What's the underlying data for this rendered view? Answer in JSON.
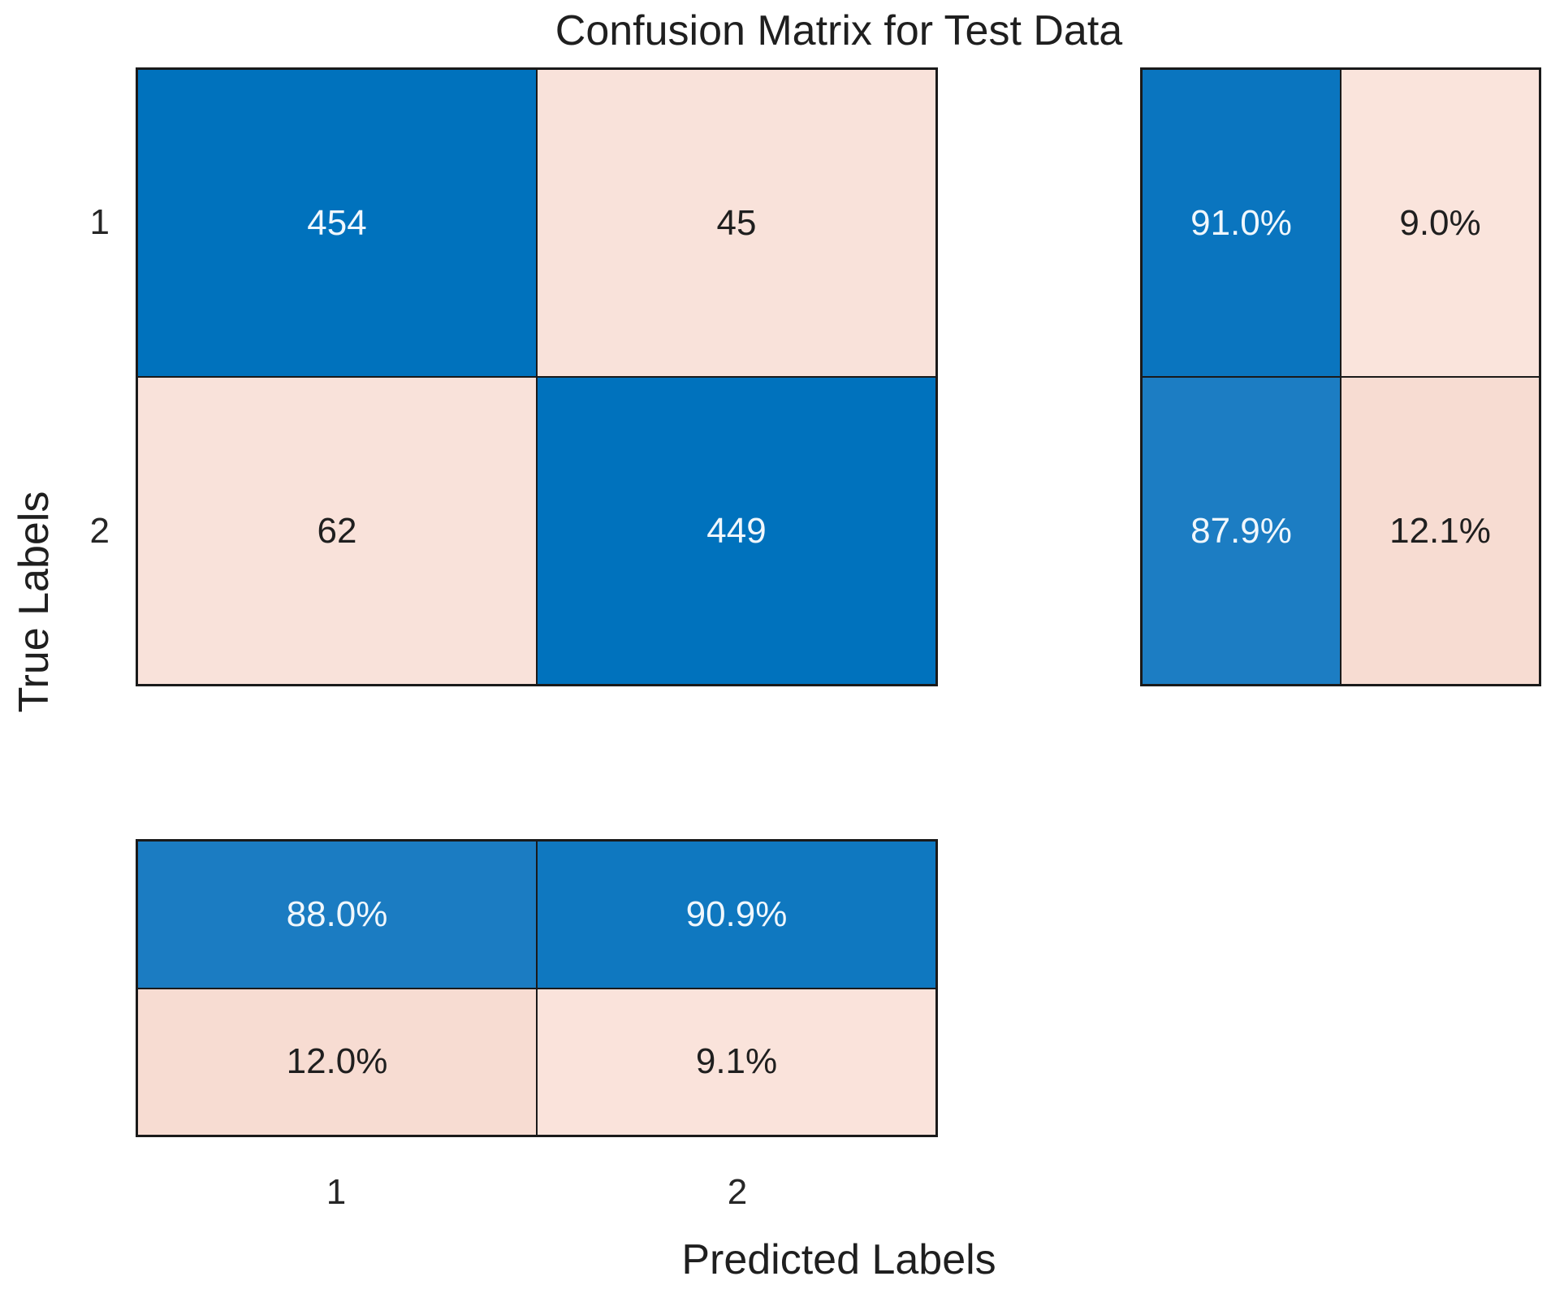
{
  "title": "Confusion Matrix for Test Data",
  "x_axis": {
    "label": "Predicted Labels",
    "ticks": [
      "1",
      "2"
    ]
  },
  "y_axis": {
    "label": "True Labels",
    "ticks": [
      "1",
      "2"
    ]
  },
  "colors": {
    "diagonal_blue": "#0072BD",
    "off_diagonal_pink": "#F9E2DA",
    "grid_line": "#1A1A1A",
    "text_dark": "#262626",
    "text_light": "#F0F7FC",
    "background": "#FFFFFF"
  },
  "main_matrix": {
    "cells": [
      [
        {
          "text": "454",
          "bg": "#0072BD",
          "fg": "#F0F7FC"
        },
        {
          "text": "45",
          "bg": "#F9E2DA",
          "fg": "#1F1F1F"
        }
      ],
      [
        {
          "text": "62",
          "bg": "#F9E2DA",
          "fg": "#1F1F1F"
        },
        {
          "text": "449",
          "bg": "#0072BD",
          "fg": "#F0F7FC"
        }
      ]
    ]
  },
  "row_summary": {
    "cells": [
      [
        {
          "text": "91.0%",
          "bg": "#0A75BF",
          "fg": "#F0F7FC"
        },
        {
          "text": "9.0%",
          "bg": "#FAE4DC",
          "fg": "#1F1F1F"
        }
      ],
      [
        {
          "text": "87.9%",
          "bg": "#1C7DC3",
          "fg": "#F0F7FC"
        },
        {
          "text": "12.1%",
          "bg": "#F7DCD2",
          "fg": "#1F1F1F"
        }
      ]
    ]
  },
  "column_summary": {
    "cells": [
      [
        {
          "text": "88.0%",
          "bg": "#1B7CC2",
          "fg": "#F0F7FC"
        },
        {
          "text": "90.9%",
          "bg": "#0F78C0",
          "fg": "#F0F7FC"
        }
      ],
      [
        {
          "text": "12.0%",
          "bg": "#F7DCD2",
          "fg": "#1F1F1F"
        },
        {
          "text": "9.1%",
          "bg": "#FAE3DB",
          "fg": "#1F1F1F"
        }
      ]
    ]
  },
  "chart_data": {
    "type": "heatmap",
    "subtype": "confusion-matrix",
    "title": "Confusion Matrix for Test Data",
    "xlabel": "Predicted Labels",
    "ylabel": "True Labels",
    "classes": [
      "1",
      "2"
    ],
    "counts": [
      [
        454,
        45
      ],
      [
        62,
        449
      ]
    ],
    "row_normalized_pct": [
      [
        91.0,
        9.0
      ],
      [
        87.9,
        12.1
      ]
    ],
    "column_normalized_pct": [
      [
        88.0,
        90.9
      ],
      [
        12.0,
        9.1
      ]
    ],
    "legend": "none",
    "grid": "off",
    "layout": "main matrix top-left, row-normalized summary right, column-normalized summary bottom"
  }
}
